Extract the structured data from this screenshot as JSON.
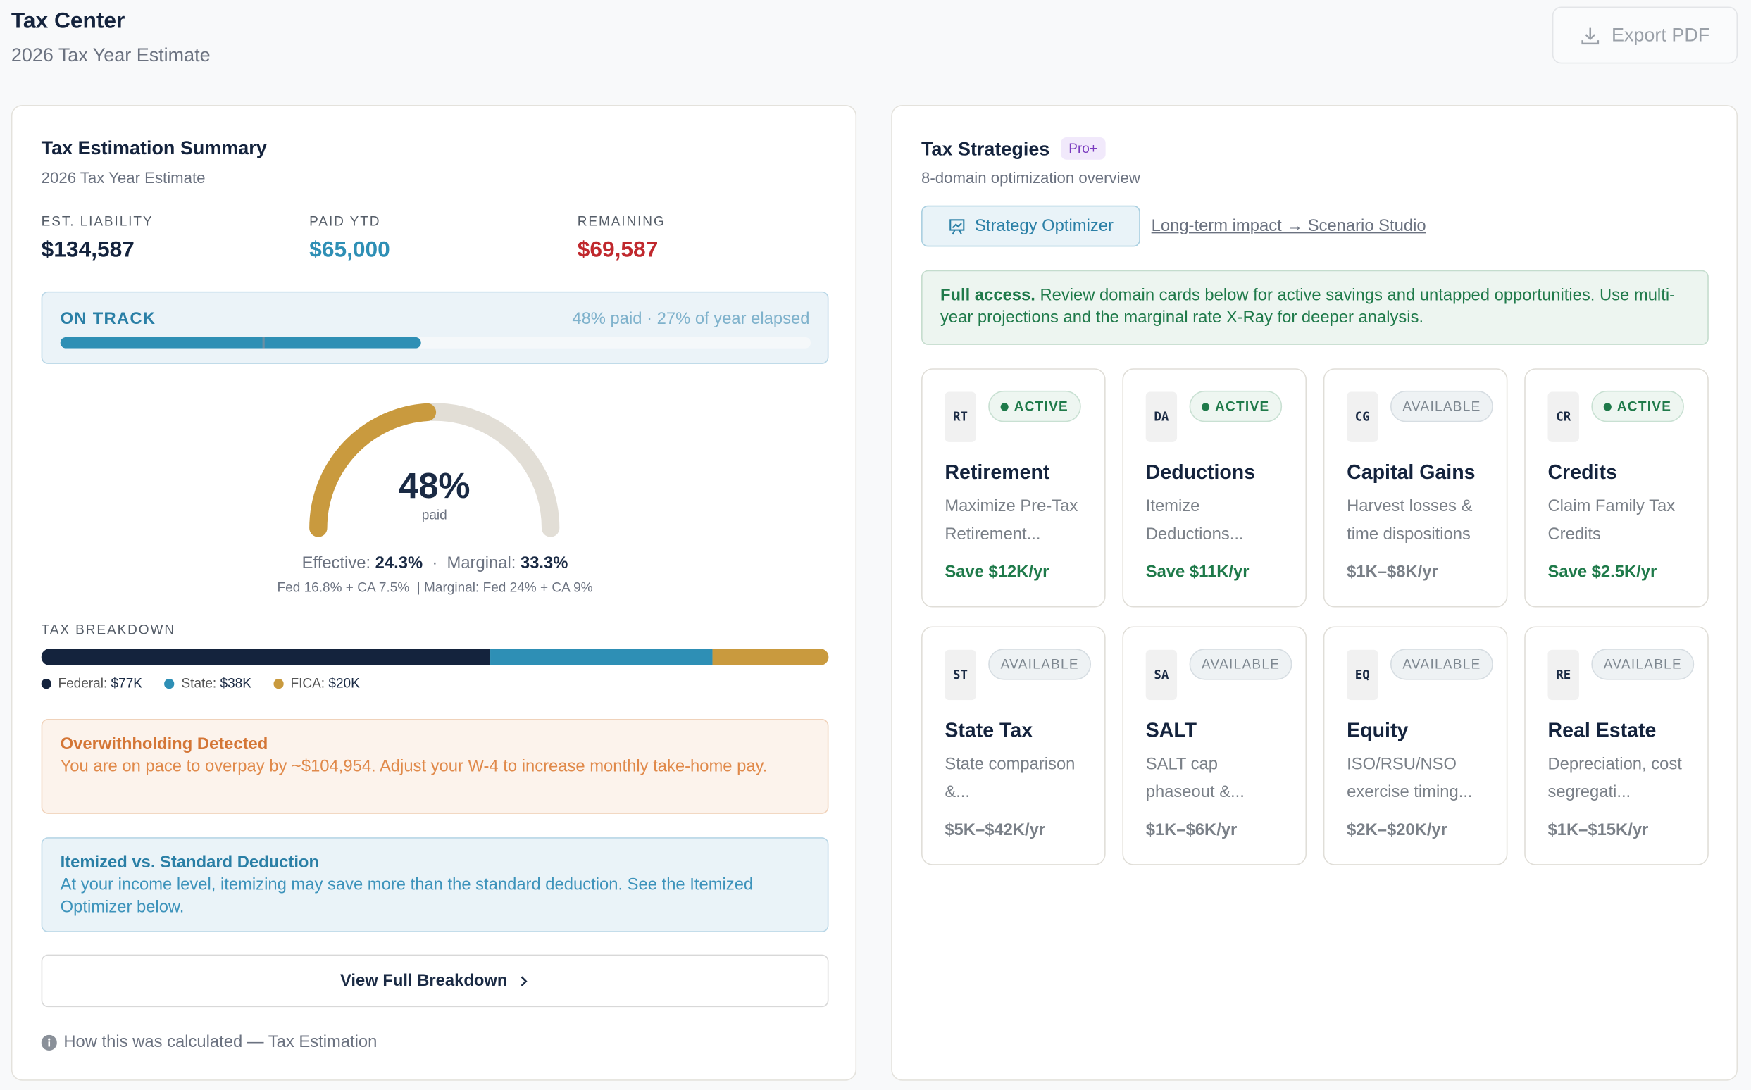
{
  "header": {
    "title": "Tax Center",
    "subtitle": "2026 Tax Year Estimate",
    "export_label": "Export PDF"
  },
  "summary": {
    "title": "Tax Estimation Summary",
    "subtitle": "2026 Tax Year Estimate",
    "stats": [
      {
        "label": "EST. LIABILITY",
        "value": "$134,587",
        "color": "#14233d"
      },
      {
        "label": "PAID YTD",
        "value": "$65,000",
        "color": "#2e8fb5"
      },
      {
        "label": "REMAINING",
        "value": "$69,587",
        "color": "#c0282d"
      }
    ],
    "status": {
      "label": "ON TRACK",
      "detail": "48% paid · 27% of year elapsed",
      "paid_percent": 48,
      "year_elapsed_percent": 27
    },
    "gauge": {
      "value": "48%",
      "caption": "paid",
      "percent": 48
    },
    "rates": {
      "effective_label": "Effective:",
      "effective": "24.3%",
      "sep": "·",
      "marginal_label": "Marginal:",
      "marginal": "33.3%",
      "detail": "Fed 16.8% + CA 7.5%  | Marginal: Fed 24% + CA 9%"
    },
    "breakdown": {
      "title": "TAX BREAKDOWN",
      "items": [
        {
          "label": "Federal:",
          "value": "$77K",
          "amount": 77,
          "color": "#14233d"
        },
        {
          "label": "State:",
          "value": "$38K",
          "amount": 38,
          "color": "#2e8fb5"
        },
        {
          "label": "FICA:",
          "value": "$20K",
          "amount": 20,
          "color": "#c99a3e"
        }
      ]
    },
    "overwithholding": {
      "title": "Overwithholding Detected",
      "text": "You are on pace to overpay by ~$104,954. Adjust your W-4 to increase monthly take-home pay."
    },
    "itemized": {
      "title": "Itemized vs. Standard Deduction",
      "text": "At your income level, itemizing may save more than the standard deduction. See the Itemized Optimizer below."
    },
    "view_button": "View Full Breakdown",
    "footnote": "How this was calculated — Tax Estimation"
  },
  "strategies": {
    "title": "Tax Strategies",
    "badge": "Pro+",
    "subtitle": "8-domain optimization overview",
    "optimizer_label": "Strategy Optimizer",
    "link_label": "Long-term impact → Scenario Studio",
    "notice_bold": "Full access.",
    "notice_text": " Review domain cards below for active savings and untapped opportunities. Use multi-year projections and the marginal rate X-Ray for deeper analysis.",
    "cards": [
      {
        "abbr": "RT",
        "status": "ACTIVE",
        "title": "Retirement",
        "desc": "Maximize Pre-Tax Retirement...",
        "save": "Save $12K/yr"
      },
      {
        "abbr": "DA",
        "status": "ACTIVE",
        "title": "Deductions",
        "desc": "Itemize Deductions...",
        "save": "Save $11K/yr"
      },
      {
        "abbr": "CG",
        "status": "AVAILABLE",
        "title": "Capital Gains",
        "desc": "Harvest losses & time dispositions",
        "save": "$1K–$8K/yr"
      },
      {
        "abbr": "CR",
        "status": "ACTIVE",
        "title": "Credits",
        "desc": "Claim Family Tax Credits",
        "save": "Save $2.5K/yr"
      },
      {
        "abbr": "ST",
        "status": "AVAILABLE",
        "title": "State Tax",
        "desc": "State comparison &...",
        "save": "$5K–$42K/yr"
      },
      {
        "abbr": "SA",
        "status": "AVAILABLE",
        "title": "SALT",
        "desc": "SALT cap phaseout &...",
        "save": "$1K–$6K/yr"
      },
      {
        "abbr": "EQ",
        "status": "AVAILABLE",
        "title": "Equity",
        "desc": "ISO/RSU/NSO exercise timing...",
        "save": "$2K–$20K/yr"
      },
      {
        "abbr": "RE",
        "status": "AVAILABLE",
        "title": "Real Estate",
        "desc": "Depreciation, cost segregati...",
        "save": "$1K–$15K/yr"
      }
    ]
  }
}
